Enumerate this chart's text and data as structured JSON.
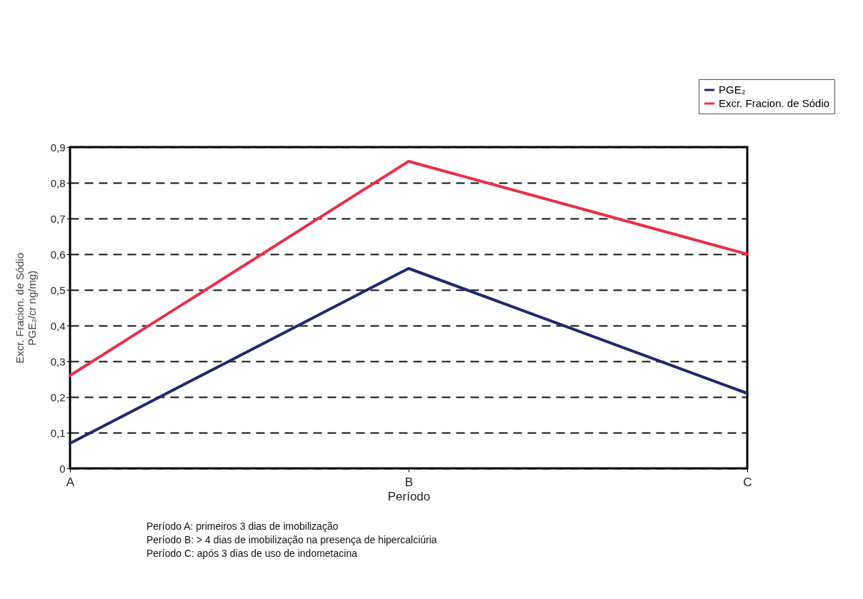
{
  "chart_data": {
    "type": "line",
    "xlabel": "Período",
    "ylabel": [
      "Excr. Fracion. de Sódio",
      "PGE₂/cr ng/mg)"
    ],
    "categories": [
      "A",
      "B",
      "C"
    ],
    "series": [
      {
        "name": "PGE₂",
        "color": "#1f2a6b",
        "values": [
          0.07,
          0.56,
          0.21
        ]
      },
      {
        "name": "Excr. Fracion. de Sódio",
        "color": "#e8304a",
        "values": [
          0.26,
          0.86,
          0.6
        ]
      }
    ],
    "ylim": [
      0,
      0.9
    ],
    "yticks": [
      0,
      {
        "value": 0.1,
        "label": "0,1"
      },
      {
        "value": 0.2,
        "label": "0,2"
      },
      {
        "value": 0.3,
        "label": "0,3"
      },
      {
        "value": 0.4,
        "label": "0,4"
      },
      {
        "value": 0.5,
        "label": "0,5"
      },
      {
        "value": 0.6,
        "label": "0,6"
      },
      {
        "value": 0.7,
        "label": "0,7"
      },
      {
        "value": 0.8,
        "label": "0,8"
      },
      {
        "value": 0.9,
        "label": "0,9"
      }
    ],
    "grid": "y",
    "legend": "top right",
    "line_style": "solid",
    "annotations": [
      "Período A: primeiros 3 dias de imobilização",
      "Período B: > 4 dias de imobilização na presença de hipercalciúria",
      "Período C: após 3 dias de uso de indometacina"
    ]
  }
}
